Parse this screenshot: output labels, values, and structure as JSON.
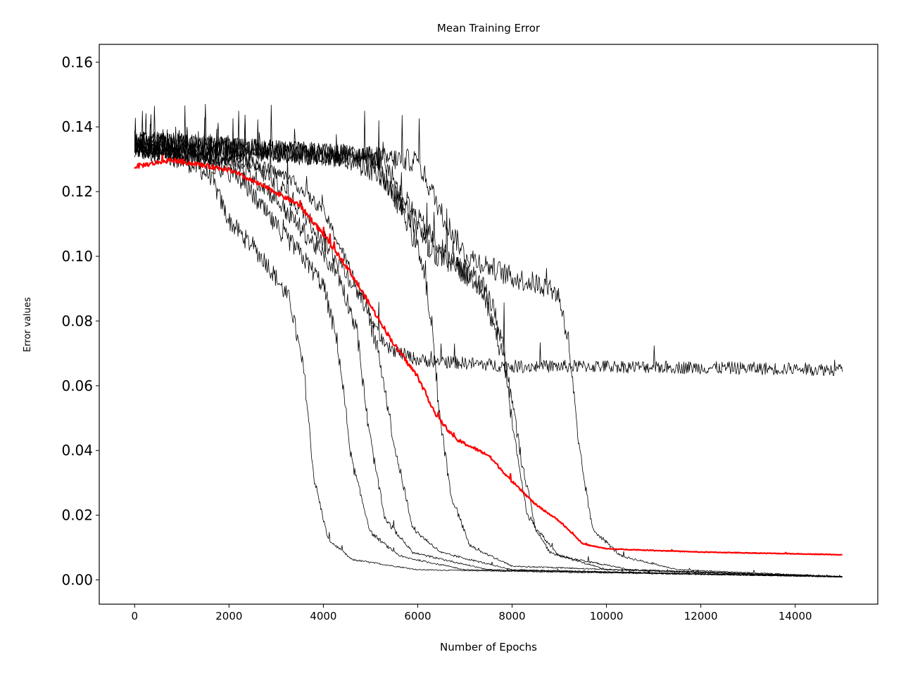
{
  "chart_data": {
    "type": "line",
    "title": "Mean Training Error",
    "xlabel": "Number of Epochs",
    "ylabel": "Error values",
    "xlim": [
      -750,
      15750
    ],
    "ylim": [
      -0.0075,
      0.1655
    ],
    "xticks": [
      0,
      2000,
      4000,
      6000,
      8000,
      10000,
      12000,
      14000
    ],
    "xtick_labels": [
      "0",
      "2000",
      "4000",
      "6000",
      "8000",
      "10000",
      "12000",
      "14000"
    ],
    "yticks": [
      0.0,
      0.02,
      0.04,
      0.06,
      0.08,
      0.1,
      0.12,
      0.14,
      0.16
    ],
    "ytick_labels": [
      "0.00",
      "0.02",
      "0.04",
      "0.06",
      "0.08",
      "0.10",
      "0.12",
      "0.14",
      "0.16"
    ],
    "grid": false,
    "legend": "none",
    "colors": {
      "runs": "#000000",
      "mean": "#ff0000"
    },
    "series": [
      {
        "color": "#000000",
        "noise": 0.006,
        "points": [
          [
            0,
            0.13
          ],
          [
            1000,
            0.127
          ],
          [
            1600,
            0.122
          ],
          [
            2000,
            0.108
          ],
          [
            2800,
            0.095
          ],
          [
            3300,
            0.083
          ],
          [
            3600,
            0.06
          ],
          [
            3800,
            0.03
          ],
          [
            4100,
            0.012
          ],
          [
            4600,
            0.006
          ],
          [
            6000,
            0.003
          ],
          [
            15000,
            0.0008
          ]
        ]
      },
      {
        "color": "#000000",
        "noise": 0.006,
        "points": [
          [
            0,
            0.13
          ],
          [
            1600,
            0.126
          ],
          [
            2300,
            0.12
          ],
          [
            2900,
            0.108
          ],
          [
            3500,
            0.098
          ],
          [
            4000,
            0.088
          ],
          [
            4300,
            0.07
          ],
          [
            4600,
            0.035
          ],
          [
            5000,
            0.014
          ],
          [
            5600,
            0.007
          ],
          [
            7000,
            0.003
          ],
          [
            15000,
            0.0008
          ]
        ]
      },
      {
        "color": "#000000",
        "noise": 0.006,
        "points": [
          [
            0,
            0.131
          ],
          [
            2000,
            0.127
          ],
          [
            2800,
            0.118
          ],
          [
            3500,
            0.106
          ],
          [
            4300,
            0.092
          ],
          [
            4700,
            0.075
          ],
          [
            4950,
            0.045
          ],
          [
            5300,
            0.018
          ],
          [
            5900,
            0.008
          ],
          [
            7500,
            0.003
          ],
          [
            15000,
            0.0008
          ]
        ]
      },
      {
        "color": "#000000",
        "noise": 0.006,
        "points": [
          [
            0,
            0.131
          ],
          [
            2300,
            0.127
          ],
          [
            3000,
            0.12
          ],
          [
            3600,
            0.11
          ],
          [
            4400,
            0.094
          ],
          [
            4900,
            0.082
          ],
          [
            5200,
            0.065
          ],
          [
            5500,
            0.04
          ],
          [
            5900,
            0.015
          ],
          [
            6500,
            0.008
          ],
          [
            8000,
            0.003
          ],
          [
            15000,
            0.0008
          ]
        ]
      },
      {
        "color": "#000000",
        "noise": 0.004,
        "points": [
          [
            0,
            0.131
          ],
          [
            2500,
            0.127
          ],
          [
            3300,
            0.122
          ],
          [
            4000,
            0.112
          ],
          [
            4700,
            0.09
          ],
          [
            5300,
            0.07
          ],
          [
            6000,
            0.066
          ],
          [
            8000,
            0.064
          ],
          [
            10000,
            0.064
          ],
          [
            15000,
            0.063
          ]
        ]
      },
      {
        "color": "#000000",
        "noise": 0.007,
        "points": [
          [
            0,
            0.132
          ],
          [
            4500,
            0.127
          ],
          [
            5200,
            0.122
          ],
          [
            5700,
            0.11
          ],
          [
            6100,
            0.095
          ],
          [
            6300,
            0.075
          ],
          [
            6450,
            0.05
          ],
          [
            6700,
            0.025
          ],
          [
            7100,
            0.01
          ],
          [
            8000,
            0.004
          ],
          [
            15000,
            0.0008
          ]
        ]
      },
      {
        "color": "#000000",
        "noise": 0.007,
        "points": [
          [
            0,
            0.132
          ],
          [
            5000,
            0.127
          ],
          [
            5700,
            0.112
          ],
          [
            6300,
            0.098
          ],
          [
            7000,
            0.092
          ],
          [
            7500,
            0.085
          ],
          [
            7800,
            0.07
          ],
          [
            8000,
            0.045
          ],
          [
            8300,
            0.02
          ],
          [
            8800,
            0.008
          ],
          [
            10000,
            0.003
          ],
          [
            15000,
            0.0008
          ]
        ]
      },
      {
        "color": "#000000",
        "noise": 0.007,
        "points": [
          [
            0,
            0.132
          ],
          [
            5200,
            0.127
          ],
          [
            6000,
            0.108
          ],
          [
            6700,
            0.095
          ],
          [
            7400,
            0.086
          ],
          [
            7900,
            0.06
          ],
          [
            8200,
            0.035
          ],
          [
            8500,
            0.015
          ],
          [
            9000,
            0.007
          ],
          [
            10500,
            0.003
          ],
          [
            15000,
            0.0008
          ]
        ]
      },
      {
        "color": "#000000",
        "noise": 0.007,
        "points": [
          [
            0,
            0.132
          ],
          [
            6000,
            0.126
          ],
          [
            6500,
            0.11
          ],
          [
            7000,
            0.097
          ],
          [
            8000,
            0.09
          ],
          [
            8800,
            0.087
          ],
          [
            9000,
            0.084
          ],
          [
            9200,
            0.07
          ],
          [
            9400,
            0.04
          ],
          [
            9700,
            0.015
          ],
          [
            10300,
            0.007
          ],
          [
            11500,
            0.003
          ],
          [
            15000,
            0.0008
          ]
        ]
      },
      {
        "color": "#ff0000",
        "noise": 0.0015,
        "points": [
          [
            0,
            0.127
          ],
          [
            800,
            0.129
          ],
          [
            2000,
            0.126
          ],
          [
            3000,
            0.119
          ],
          [
            3500,
            0.115
          ],
          [
            4000,
            0.106
          ],
          [
            4500,
            0.096
          ],
          [
            5000,
            0.084
          ],
          [
            5500,
            0.072
          ],
          [
            6000,
            0.062
          ],
          [
            6400,
            0.05
          ],
          [
            6800,
            0.043
          ],
          [
            7500,
            0.038
          ],
          [
            8000,
            0.03
          ],
          [
            8500,
            0.023
          ],
          [
            9000,
            0.018
          ],
          [
            9500,
            0.011
          ],
          [
            10000,
            0.0095
          ],
          [
            12000,
            0.0085
          ],
          [
            15000,
            0.0077
          ]
        ]
      }
    ]
  }
}
